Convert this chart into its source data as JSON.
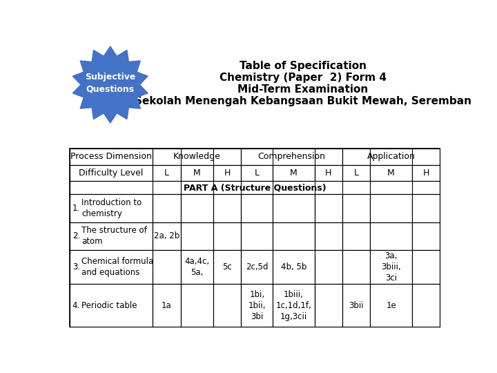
{
  "title_lines": [
    "Table of Specification",
    "Chemistry (Paper  2) Form 4",
    "Mid-Term Examination",
    "Sekolah Menengah Kebangsaan Bukit Mewah, Seremban"
  ],
  "badge_text": "Subjective\nQuestions",
  "badge_color": "#4472C4",
  "badge_text_color": "#FFFFFF",
  "part_a_label": "PART A (Structure Questions)",
  "rows": [
    {
      "num": "1.",
      "topic": "Introduction to\nchemistry",
      "cells": [
        "",
        "",
        "",
        "",
        "",
        "",
        "",
        "",
        ""
      ]
    },
    {
      "num": "2.",
      "topic": "The structure of\natom",
      "cells": [
        "2a, 2b",
        "",
        "",
        "",
        "",
        "",
        "",
        "",
        ""
      ]
    },
    {
      "num": "3.",
      "topic": "Chemical formula\nand equations",
      "cells": [
        "",
        "4a,4c,\n5a,",
        "5c",
        "2c,5d",
        "4b, 5b",
        "",
        "",
        "3a,\n3biii,\n3ci",
        ""
      ]
    },
    {
      "num": "4.",
      "topic": "Periodic table",
      "cells": [
        "1a",
        "",
        "",
        "1bi,\n1bii,\n3bi",
        "1biii,\n1c,1d,1f,\n1g,3cii",
        "",
        "3bii",
        "1e",
        ""
      ]
    }
  ],
  "background_color": "#FFFFFF",
  "title_fontsize": 11,
  "cell_fontsize": 8.5,
  "header_fontsize": 9,
  "badge_fontsize": 9
}
